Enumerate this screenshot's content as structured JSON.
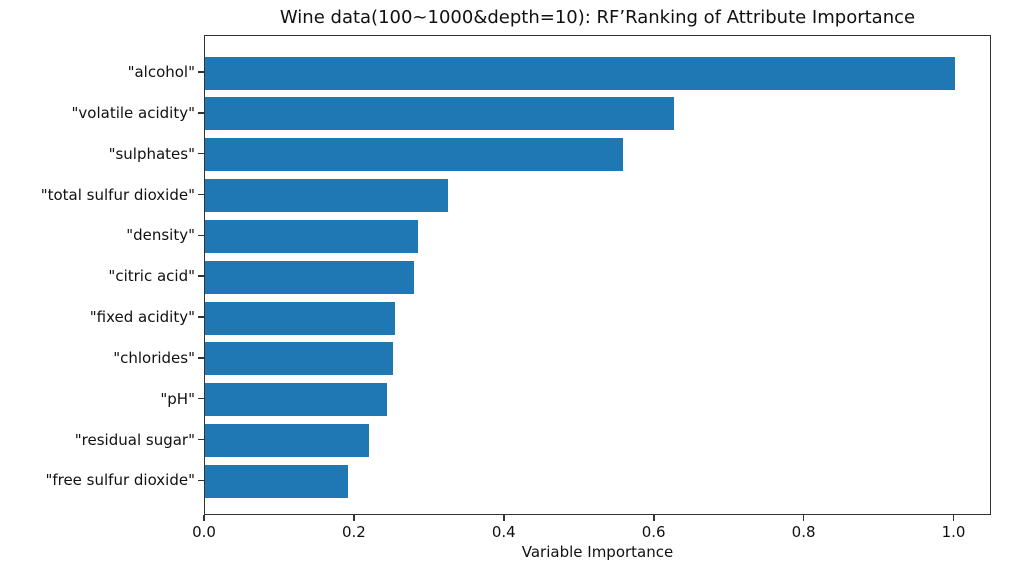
{
  "chart_data": {
    "type": "bar",
    "orientation": "horizontal",
    "title": "Wine data(100~1000&depth=10): RF’Ranking of Attribute Importance",
    "xlabel": "Variable Importance",
    "ylabel": "",
    "categories": [
      "\"alcohol\"",
      "\"volatile acidity\"",
      "\"sulphates\"",
      "\"total sulfur dioxide\"",
      "\"density\"",
      "\"citric acid\"",
      "\"fixed acidity\"",
      "\"chlorides\"",
      "\"pH\"",
      "\"residual sugar\"",
      "\"free sulfur dioxide\""
    ],
    "values": [
      1.0,
      0.626,
      0.558,
      0.324,
      0.284,
      0.279,
      0.254,
      0.251,
      0.243,
      0.219,
      0.191
    ],
    "xlim": [
      0,
      1.05
    ],
    "xtick_labels": [
      "0.0",
      "0.2",
      "0.4",
      "0.6",
      "0.8",
      "1.0"
    ],
    "xtick_values": [
      0.0,
      0.2,
      0.4,
      0.6,
      0.8,
      1.0
    ],
    "bar_color": "#1f77b4",
    "spine_color": "#333333",
    "grid": false,
    "legend": "none"
  }
}
